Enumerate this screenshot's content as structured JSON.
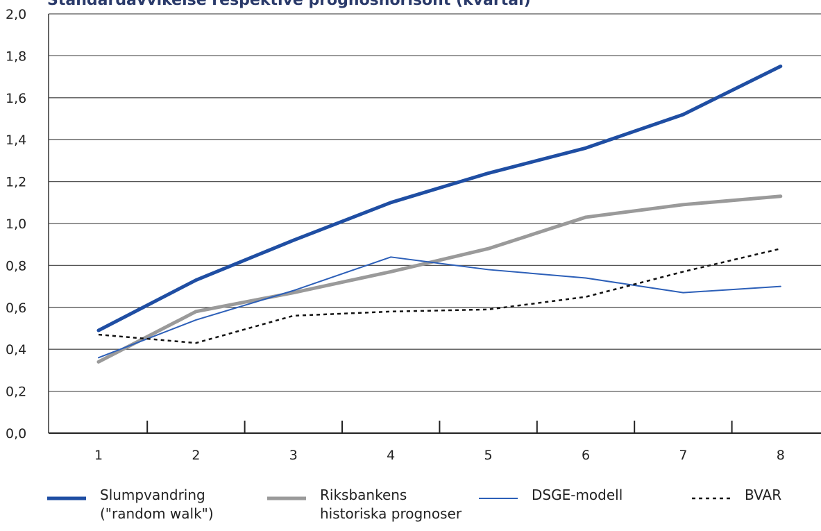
{
  "chart_data": {
    "type": "line",
    "title": "Standardavvikelse respektive prognoshorisont (kvartal)",
    "x": [
      1,
      2,
      3,
      4,
      5,
      6,
      7,
      8
    ],
    "xlabel": "",
    "ylabel": "",
    "ylim": [
      0,
      2
    ],
    "yticks": [
      "0,0",
      "0,2",
      "0,4",
      "0,6",
      "0,8",
      "1,0",
      "1,2",
      "1,4",
      "1,6",
      "1,8",
      "2,0"
    ],
    "xticks": [
      "1",
      "2",
      "3",
      "4",
      "5",
      "6",
      "7",
      "8"
    ],
    "grid": true,
    "legend_position": "bottom",
    "series": [
      {
        "name": "Slumpvandring\n(\"random walk\")",
        "values": [
          0.49,
          0.73,
          0.92,
          1.1,
          1.24,
          1.36,
          1.52,
          1.75
        ],
        "color": "#1f4ea3",
        "width": 5,
        "dash": ""
      },
      {
        "name": "Riksbankens\nhistoriska prognoser",
        "values": [
          0.34,
          0.58,
          0.67,
          0.77,
          0.88,
          1.03,
          1.09,
          1.13
        ],
        "color": "#9a9a9a",
        "width": 5,
        "dash": ""
      },
      {
        "name": "DSGE-modell",
        "values": [
          0.36,
          0.54,
          0.68,
          0.84,
          0.78,
          0.74,
          0.67,
          0.7
        ],
        "color": "#2c5fb8",
        "width": 2,
        "dash": ""
      },
      {
        "name": "BVAR",
        "values": [
          0.47,
          0.43,
          0.56,
          0.58,
          0.59,
          0.65,
          0.77,
          0.88
        ],
        "color": "#111111",
        "width": 2.5,
        "dash": "5,5"
      }
    ]
  }
}
